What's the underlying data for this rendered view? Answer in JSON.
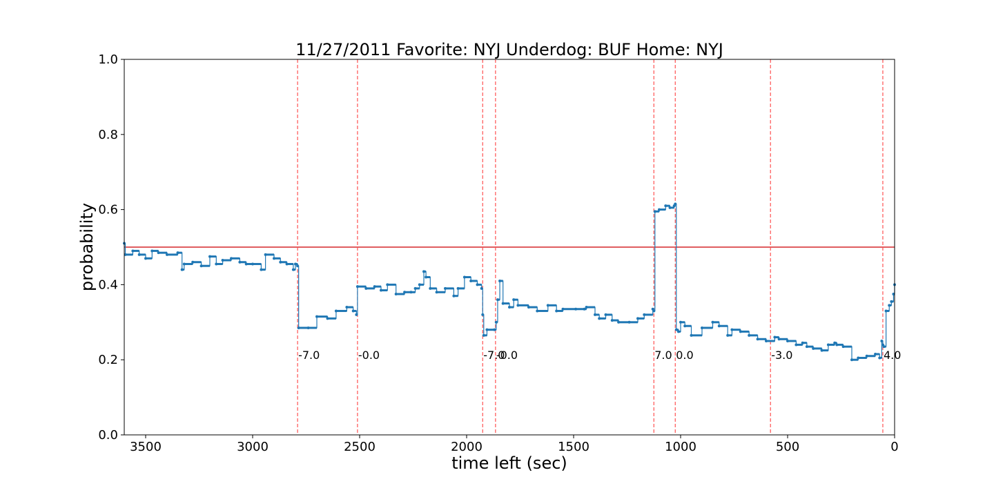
{
  "chart_data": {
    "type": "line",
    "title": "11/27/2011 Favorite: NYJ Underdog: BUF Home: NYJ",
    "xlabel": "time left (sec)",
    "ylabel": "probability",
    "xlim": [
      3600,
      0
    ],
    "ylim": [
      0.0,
      1.0
    ],
    "x_ticks": [
      3500,
      3000,
      2500,
      2000,
      1500,
      1000,
      500,
      0
    ],
    "x_tick_labels": [
      "3500",
      "3000",
      "2500",
      "2000",
      "1500",
      "1000",
      "500",
      "0"
    ],
    "y_ticks": [
      0.0,
      0.2,
      0.4,
      0.6,
      0.8,
      1.0
    ],
    "y_tick_labels": [
      "0.0",
      "0.2",
      "0.4",
      "0.6",
      "0.8",
      "1.0"
    ],
    "grid": false,
    "colors": {
      "series": "#1f77b4",
      "reference": "#d62728",
      "events": "#ff5050"
    },
    "reference_line": {
      "y": 0.5
    },
    "series": [
      {
        "x": [
          3600,
          3595,
          3560,
          3530,
          3500,
          3470,
          3440,
          3400,
          3350,
          3330,
          3320,
          3280,
          3240,
          3200,
          3170,
          3140,
          3100,
          3060,
          3030,
          3000,
          2960,
          2940,
          2900,
          2870,
          2840,
          2810,
          2800,
          2790,
          2785,
          2740,
          2700,
          2650,
          2610,
          2560,
          2530,
          2515,
          2510,
          2470,
          2430,
          2400,
          2370,
          2330,
          2290,
          2260,
          2240,
          2220,
          2200,
          2190,
          2170,
          2140,
          2100,
          2060,
          2040,
          2010,
          1980,
          1950,
          1930,
          1925,
          1920,
          1905,
          1870,
          1862,
          1855,
          1845,
          1830,
          1800,
          1780,
          1760,
          1710,
          1670,
          1620,
          1580,
          1550,
          1490,
          1450,
          1440,
          1400,
          1380,
          1350,
          1320,
          1290,
          1240,
          1200,
          1170,
          1130,
          1125,
          1120,
          1100,
          1070,
          1050,
          1030,
          1025,
          1020,
          1010,
          1000,
          980,
          950,
          900,
          850,
          820,
          780,
          760,
          720,
          680,
          640,
          600,
          560,
          540,
          500,
          460,
          430,
          410,
          380,
          340,
          310,
          280,
          270,
          240,
          200,
          170,
          130,
          90,
          70,
          60,
          55,
          50,
          40,
          25,
          15,
          5,
          0
        ],
        "y": [
          0.51,
          0.48,
          0.49,
          0.48,
          0.47,
          0.49,
          0.485,
          0.48,
          0.485,
          0.44,
          0.455,
          0.46,
          0.45,
          0.475,
          0.455,
          0.465,
          0.47,
          0.46,
          0.455,
          0.455,
          0.44,
          0.48,
          0.47,
          0.46,
          0.455,
          0.44,
          0.455,
          0.45,
          0.285,
          0.285,
          0.315,
          0.31,
          0.33,
          0.34,
          0.33,
          0.32,
          0.395,
          0.39,
          0.395,
          0.385,
          0.4,
          0.375,
          0.38,
          0.38,
          0.39,
          0.4,
          0.435,
          0.42,
          0.39,
          0.38,
          0.39,
          0.37,
          0.39,
          0.42,
          0.41,
          0.4,
          0.39,
          0.32,
          0.265,
          0.28,
          0.28,
          0.3,
          0.36,
          0.41,
          0.35,
          0.34,
          0.36,
          0.345,
          0.34,
          0.33,
          0.345,
          0.33,
          0.335,
          0.335,
          0.335,
          0.34,
          0.32,
          0.31,
          0.32,
          0.305,
          0.3,
          0.3,
          0.31,
          0.32,
          0.335,
          0.33,
          0.595,
          0.6,
          0.61,
          0.605,
          0.61,
          0.615,
          0.28,
          0.275,
          0.3,
          0.29,
          0.265,
          0.285,
          0.3,
          0.29,
          0.265,
          0.28,
          0.275,
          0.265,
          0.255,
          0.25,
          0.26,
          0.255,
          0.25,
          0.24,
          0.245,
          0.235,
          0.23,
          0.225,
          0.24,
          0.245,
          0.24,
          0.235,
          0.2,
          0.205,
          0.21,
          0.215,
          0.205,
          0.25,
          0.24,
          0.235,
          0.33,
          0.345,
          0.355,
          0.375,
          0.4
        ]
      }
    ],
    "events": [
      {
        "x": 2790,
        "label": "-7.0"
      },
      {
        "x": 2510,
        "label": "-0.0"
      },
      {
        "x": 1925,
        "label": "-7.0"
      },
      {
        "x": 1865,
        "label": "-0.0"
      },
      {
        "x": 1125,
        "label": "7.0"
      },
      {
        "x": 1025,
        "label": "0.0"
      },
      {
        "x": 580,
        "label": "-3.0"
      },
      {
        "x": 55,
        "label": "4.0"
      }
    ],
    "event_label_y": 0.2
  }
}
